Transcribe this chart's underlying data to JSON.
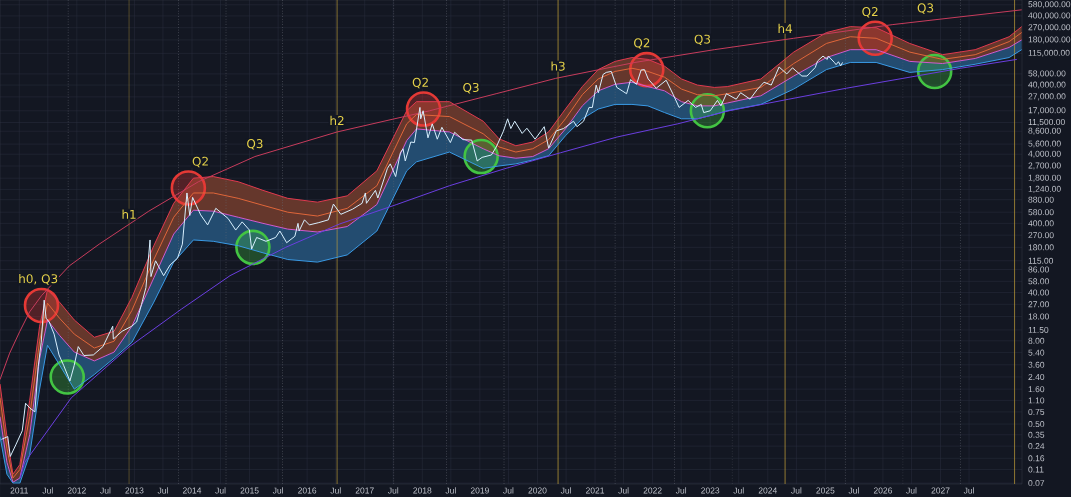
{
  "chart_data": {
    "type": "line",
    "xlim": [
      "2010-09",
      "2028-06"
    ],
    "ylim": [
      0.068,
      680000
    ],
    "log": "y",
    "grid": true,
    "xticks": [
      {
        "value": "2011",
        "label": "2011"
      },
      {
        "value": "2011-07",
        "label": "Jul"
      },
      {
        "value": "2012",
        "label": "2012"
      },
      {
        "value": "2012-07",
        "label": "Jul"
      },
      {
        "value": "2013",
        "label": "2013"
      },
      {
        "value": "2013-07",
        "label": "Jul"
      },
      {
        "value": "2014",
        "label": "2014"
      },
      {
        "value": "2014-07",
        "label": "Jul"
      },
      {
        "value": "2015",
        "label": "2015"
      },
      {
        "value": "2015-07",
        "label": "Jul"
      },
      {
        "value": "2016",
        "label": "2016"
      },
      {
        "value": "2016-07",
        "label": "Jul"
      },
      {
        "value": "2017",
        "label": "2017"
      },
      {
        "value": "2017-07",
        "label": "Jul"
      },
      {
        "value": "2018",
        "label": "2018"
      },
      {
        "value": "2018-07",
        "label": "Jul"
      },
      {
        "value": "2019",
        "label": "2019"
      },
      {
        "value": "2019-07",
        "label": "Jul"
      },
      {
        "value": "2020",
        "label": "2020"
      },
      {
        "value": "2020-07",
        "label": "Jul"
      },
      {
        "value": "2021",
        "label": "2021"
      },
      {
        "value": "2021-07",
        "label": "Jul"
      },
      {
        "value": "2022",
        "label": "2022"
      },
      {
        "value": "2022-07",
        "label": "Jul"
      },
      {
        "value": "2023",
        "label": "2023"
      },
      {
        "value": "2023-07",
        "label": "Jul"
      },
      {
        "value": "2024",
        "label": "2024"
      },
      {
        "value": "2024-07",
        "label": "Jul"
      },
      {
        "value": "2025",
        "label": "2025"
      },
      {
        "value": "2025-07",
        "label": "Jul"
      },
      {
        "value": "2026",
        "label": "2026"
      },
      {
        "value": "2026-07",
        "label": "Jul"
      },
      {
        "value": "2027",
        "label": "2027"
      },
      {
        "value": "2027-07",
        "label": "Jul"
      }
    ],
    "yticks": [
      {
        "value": 0.07,
        "label": "0.07"
      },
      {
        "value": 0.11,
        "label": "0.11"
      },
      {
        "value": 0.16,
        "label": "0.16"
      },
      {
        "value": 0.24,
        "label": "0.24"
      },
      {
        "value": 0.35,
        "label": "0.35"
      },
      {
        "value": 0.5,
        "label": "0.50"
      },
      {
        "value": 0.75,
        "label": "0.75"
      },
      {
        "value": 1.1,
        "label": "1.10"
      },
      {
        "value": 1.6,
        "label": "1.60"
      },
      {
        "value": 2.4,
        "label": "2.40"
      },
      {
        "value": 3.6,
        "label": "3.60"
      },
      {
        "value": 5.4,
        "label": "5.40"
      },
      {
        "value": 8,
        "label": "8.00"
      },
      {
        "value": 11.5,
        "label": "11.50"
      },
      {
        "value": 18,
        "label": "18.00"
      },
      {
        "value": 27,
        "label": "27.00"
      },
      {
        "value": 40,
        "label": "40.00"
      },
      {
        "value": 58,
        "label": "58.00"
      },
      {
        "value": 86,
        "label": "86.00"
      },
      {
        "value": 115,
        "label": "115.00"
      },
      {
        "value": 180,
        "label": "180.00"
      },
      {
        "value": 270,
        "label": "270.00"
      },
      {
        "value": 400,
        "label": "400.00"
      },
      {
        "value": 580,
        "label": "580.00"
      },
      {
        "value": 880,
        "label": "880.00"
      },
      {
        "value": 1240,
        "label": "1,240.00"
      },
      {
        "value": 1800,
        "label": "1,800.00"
      },
      {
        "value": 2700,
        "label": "2,700.00"
      },
      {
        "value": 4000,
        "label": "4,000.00"
      },
      {
        "value": 5600,
        "label": "5,600.00"
      },
      {
        "value": 8600,
        "label": "8,600.00"
      },
      {
        "value": 11500,
        "label": "11,500.00"
      },
      {
        "value": 17000,
        "label": "17,000.00"
      },
      {
        "value": 27000,
        "label": "27,000.00"
      },
      {
        "value": 40000,
        "label": "40,000.00"
      },
      {
        "value": 58000,
        "label": "58,000.00"
      },
      {
        "value": 115000,
        "label": "115,000.00"
      },
      {
        "value": 180000,
        "label": "180,000.00"
      },
      {
        "value": 270000,
        "label": "270,000.00"
      },
      {
        "value": 400000,
        "label": "400,000.00"
      },
      {
        "value": 580000,
        "label": "580,000.00"
      }
    ],
    "x": [
      "2010-09-01",
      "2010-10-15",
      "2010-11-22",
      "2011-01-05",
      "2011-03-08",
      "2011-05-10",
      "2011-06-29",
      "2011-09-13",
      "2011-12-16",
      "2012-04-21",
      "2012-08-25",
      "2012-12-16",
      "2013-05-04",
      "2013-09-07",
      "2014-01-10",
      "2014-05-16",
      "2014-10-21",
      "2015-03-27",
      "2015-08-31",
      "2016-03-07",
      "2016-09-12",
      "2017-03-19",
      "2017-09-24",
      "2017-11-25",
      "2018-06-22",
      "2019-01-22",
      "2019-05-02",
      "2019-08-17",
      "2019-12-02",
      "2020-03-12",
      "2020-06-27",
      "2020-10-12",
      "2021-01-21",
      "2021-05-08",
      "2021-08-23",
      "2021-12-02",
      "2022-03-18",
      "2022-07-03",
      "2022-10-12",
      "2023-01-27",
      "2023-04-19",
      "2023-11-18",
      "2024-06-14",
      "2025-01-08",
      "2025-06-08",
      "2025-11-19",
      "2026-06-20",
      "2027-01-14",
      "2027-08-09",
      "2028-03-11",
      "2028-05-30"
    ],
    "series": [
      {
        "color": "#e03a4f",
        "values": [
          1.9,
          0.33,
          0.094,
          0.13,
          1.1,
          13,
          44,
          29,
          16,
          9.0,
          11,
          34,
          190,
          780,
          1800,
          1900,
          1600,
          1200,
          920,
          810,
          1000,
          2300,
          17000,
          23000,
          23000,
          12000,
          6700,
          5300,
          6000,
          8400,
          18000,
          38000,
          67000,
          88000,
          100000,
          94000,
          75000,
          49000,
          40000,
          37000,
          38000,
          49000,
          120000,
          230000,
          280000,
          270000,
          160000,
          110000,
          130000,
          200000,
          280000
        ]
      },
      {
        "color": "#e0663a",
        "values": [
          1.2,
          0.22,
          0.083,
          0.11,
          0.64,
          7.9,
          28,
          17,
          10,
          6.3,
          7.9,
          22,
          120,
          490,
          1100,
          1100,
          920,
          730,
          580,
          510,
          660,
          1400,
          11000,
          15000,
          14000,
          7900,
          5100,
          4300,
          4800,
          6500,
          13000,
          29000,
          49000,
          63000,
          70000,
          63000,
          52000,
          35000,
          29000,
          28000,
          30000,
          37000,
          82000,
          160000,
          200000,
          190000,
          120000,
          94000,
          110000,
          170000,
          230000
        ],
        "lower": [
          0.64,
          0.14,
          0.072,
          0.083,
          0.35,
          4.4,
          16,
          9.6,
          5.5,
          4.1,
          5.5,
          13,
          65,
          280,
          620,
          600,
          490,
          400,
          330,
          300,
          360,
          750,
          6300,
          9300,
          8400,
          4800,
          3800,
          3500,
          3700,
          4800,
          9300,
          20000,
          33000,
          41000,
          44000,
          38000,
          33000,
          23000,
          20000,
          20000,
          22000,
          28000,
          54000,
          100000,
          130000,
          130000,
          88000,
          82000,
          97000,
          140000,
          180000
        ],
        "upper": [
          1.9,
          0.33,
          0.094,
          0.13,
          1.1,
          13,
          44,
          29,
          16,
          9.0,
          11,
          34,
          190,
          780,
          1800,
          1900,
          1600,
          1200,
          920,
          810,
          1000,
          2300,
          17000,
          23000,
          23000,
          12000,
          6700,
          5300,
          6000,
          8400,
          18000,
          38000,
          67000,
          88000,
          100000,
          94000,
          75000,
          49000,
          40000,
          37000,
          38000,
          49000,
          120000,
          230000,
          280000,
          270000,
          160000,
          110000,
          130000,
          200000,
          280000
        ]
      },
      {
        "color": "#d45bd0",
        "values": [
          0.64,
          0.14,
          0.072,
          0.083,
          0.35,
          4.4,
          16,
          9.6,
          5.5,
          4.1,
          5.5,
          13,
          65,
          280,
          620,
          600,
          490,
          400,
          330,
          300,
          360,
          750,
          6300,
          9300,
          8400,
          4800,
          3800,
          3500,
          3700,
          4800,
          9300,
          20000,
          33000,
          41000,
          44000,
          38000,
          33000,
          23000,
          20000,
          20000,
          22000,
          28000,
          54000,
          100000,
          130000,
          130000,
          88000,
          82000,
          97000,
          140000,
          180000
        ]
      },
      {
        "color": "#3a9be6",
        "values": [
          0.33,
          0.094,
          0.07,
          0.07,
          0.18,
          1.6,
          6.9,
          3.6,
          1.6,
          2.6,
          4.5,
          7.6,
          29,
          110,
          230,
          220,
          190,
          150,
          120,
          110,
          140,
          310,
          2300,
          3100,
          4300,
          2500,
          2700,
          2900,
          3300,
          3800,
          7400,
          13000,
          18000,
          21000,
          21000,
          20000,
          16000,
          13000,
          13000,
          15000,
          17000,
          21000,
          35000,
          67000,
          85000,
          85000,
          61000,
          67000,
          80000,
          100000,
          130000
        ],
        "lower": [
          0.33,
          0.094,
          0.07,
          0.07,
          0.18,
          1.6,
          6.9,
          3.6,
          1.6,
          2.6,
          4.5,
          7.6,
          29,
          110,
          230,
          220,
          190,
          150,
          120,
          110,
          140,
          310,
          2300,
          3100,
          4300,
          2500,
          2700,
          2900,
          3300,
          3800,
          7400,
          13000,
          18000,
          21000,
          21000,
          20000,
          16000,
          13000,
          13000,
          15000,
          17000,
          21000,
          35000,
          67000,
          85000,
          85000,
          61000,
          67000,
          80000,
          100000,
          130000
        ],
        "upper": [
          0.64,
          0.14,
          0.072,
          0.083,
          0.35,
          4.4,
          16,
          9.6,
          5.5,
          4.1,
          5.5,
          13,
          65,
          280,
          620,
          600,
          490,
          400,
          330,
          300,
          360,
          750,
          6300,
          9300,
          8400,
          4800,
          3800,
          3500,
          3700,
          4800,
          9300,
          20000,
          33000,
          41000,
          44000,
          38000,
          33000,
          23000,
          20000,
          20000,
          22000,
          28000,
          54000,
          100000,
          130000,
          130000,
          88000,
          82000,
          97000,
          140000,
          180000
        ]
      },
      {
        "color": "#c83c5c",
        "x": [
          "2010-09-01",
          "2010-11-01",
          "2011-01-05",
          "2011-03-08",
          "2011-05-22",
          "2011-11-14",
          "2012-05-22",
          "2013-04-02",
          "2014-02-11",
          "2015-02-04",
          "2016-07-10",
          "2018-02-16",
          "2019-04-14",
          "2020-04-26",
          "2021-09-11",
          "2023-01-27",
          "2024-06-14",
          "2026-03-05",
          "2028-05-30"
        ],
        "values": [
          2.2,
          5.3,
          11,
          21,
          36,
          97,
          200,
          600,
          1600,
          3700,
          8400,
          17000,
          30000,
          50000,
          85000,
          130000,
          190000,
          300000,
          490000
        ]
      },
      {
        "color": "#6a3ee0",
        "x": [
          "2011-01-05",
          "2011-02-05",
          "2011-11-27",
          "2012-11-27",
          "2013-10-26",
          "2014-08-30",
          "2015-08-18",
          "2016-07-23",
          "2017-07-23",
          "2018-06-22",
          "2019-06-16",
          "2020-05-27",
          "2021-05-21",
          "2022-06-09",
          "2023-05-01",
          "2024-05-14",
          "2025-05-14",
          "2026-05-08",
          "2027-05-07",
          "2028-04-29"
        ],
        "values": [
          0.082,
          0.14,
          1.2,
          6.5,
          23,
          70,
          180,
          390,
          750,
          1400,
          2500,
          4200,
          7100,
          11000,
          17000,
          25000,
          36000,
          50000,
          70000,
          94000
        ]
      },
      {
        "color": "#d8f0ff",
        "x": [
          "2010-09-10",
          "2010-10-20",
          "2010-11-05",
          "2010-12-10",
          "2011-01-20",
          "2011-02-10",
          "2011-03-10",
          "2011-04-10",
          "2011-05-01",
          "2011-05-20",
          "2011-06-08",
          "2011-06-20",
          "2011-07-10",
          "2011-08-10",
          "2011-09-10",
          "2011-10-10",
          "2011-11-18",
          "2011-12-15",
          "2012-01-10",
          "2012-02-15",
          "2012-04-15",
          "2012-06-15",
          "2012-08-16",
          "2012-08-20",
          "2012-10-15",
          "2012-12-15",
          "2013-01-15",
          "2013-02-15",
          "2013-03-15",
          "2013-04-10",
          "2013-04-16",
          "2013-05-15",
          "2013-07-05",
          "2013-08-15",
          "2013-10-01",
          "2013-11-01",
          "2013-11-30",
          "2013-12-18",
          "2014-01-05",
          "2014-02-25",
          "2014-04-10",
          "2014-06-01",
          "2014-08-18",
          "2014-10-05",
          "2014-11-15",
          "2014-12-31",
          "2015-01-14",
          "2015-02-15",
          "2015-04-15",
          "2015-06-15",
          "2015-07-12",
          "2015-08-24",
          "2015-10-15",
          "2015-11-04",
          "2015-11-11",
          "2015-12-15",
          "2016-01-15",
          "2016-03-15",
          "2016-05-15",
          "2016-06-16",
          "2016-08-02",
          "2016-10-15",
          "2016-12-15",
          "2017-01-05",
          "2017-01-12",
          "2017-03-10",
          "2017-03-25",
          "2017-05-25",
          "2017-06-12",
          "2017-07-16",
          "2017-08-15",
          "2017-09-01",
          "2017-09-15",
          "2017-10-20",
          "2017-11-12",
          "2017-12-17",
          "2017-12-22",
          "2018-01-06",
          "2018-02-06",
          "2018-03-05",
          "2018-04-06",
          "2018-05-05",
          "2018-06-28",
          "2018-07-25",
          "2018-09-15",
          "2018-11-10",
          "2018-12-15",
          "2019-01-15",
          "2019-03-15",
          "2019-04-15",
          "2019-05-30",
          "2019-06-26",
          "2019-07-16",
          "2019-08-10",
          "2019-09-26",
          "2019-10-26",
          "2019-12-17",
          "2020-02-13",
          "2020-03-12",
          "2020-04-30",
          "2020-06-15",
          "2020-08-17",
          "2020-09-08",
          "2020-10-20",
          "2020-11-24",
          "2020-12-15",
          "2021-01-08",
          "2021-01-22",
          "2021-02-21",
          "2021-03-13",
          "2021-04-14",
          "2021-05-19",
          "2021-06-22",
          "2021-07-20",
          "2021-08-14",
          "2021-09-21",
          "2021-10-20",
          "2021-11-10",
          "2021-12-04",
          "2022-01-24",
          "2022-03-28",
          "2022-05-12",
          "2022-06-18",
          "2022-08-14",
          "2022-09-30",
          "2022-11-05",
          "2022-11-21",
          "2023-01-01",
          "2023-02-16",
          "2023-03-10",
          "2023-04-14",
          "2023-06-15",
          "2023-07-13",
          "2023-09-11",
          "2023-10-24",
          "2023-12-08",
          "2024-01-23",
          "2024-03-13",
          "2024-05-01",
          "2024-06-06",
          "2024-08-05",
          "2024-09-06",
          "2024-10-29",
          "2024-11-12",
          "2024-12-17",
          "2025-01-13",
          "2025-01-20",
          "2025-02-27",
          "2025-03-10",
          "2025-03-25",
          "2025-04-08",
          "2025-04-20"
        ],
        "values": [
          0.3,
          0.33,
          0.17,
          0.25,
          0.4,
          1.0,
          0.85,
          0.75,
          3.4,
          7.5,
          31,
          17,
          15,
          10,
          5.0,
          3.5,
          2.1,
          3.5,
          6.6,
          4.9,
          5.0,
          6.6,
          13,
          8.5,
          11,
          13,
          15,
          27,
          47,
          230,
          68,
          115,
          70,
          100,
          125,
          200,
          1100,
          520,
          950,
          530,
          380,
          660,
          470,
          320,
          420,
          320,
          170,
          250,
          220,
          250,
          310,
          210,
          260,
          400,
          310,
          450,
          380,
          410,
          450,
          760,
          540,
          640,
          780,
          1100,
          780,
          1200,
          930,
          2500,
          2900,
          1900,
          4200,
          4800,
          3200,
          6000,
          5900,
          19000,
          13000,
          17000,
          6900,
          11000,
          6600,
          9800,
          5900,
          8300,
          6500,
          6400,
          3200,
          3600,
          3900,
          5100,
          8600,
          13000,
          9400,
          12000,
          8000,
          9500,
          6600,
          10000,
          4900,
          8700,
          9400,
          12000,
          10000,
          12000,
          19000,
          19000,
          40000,
          31000,
          57000,
          61000,
          63000,
          37000,
          33000,
          30000,
          48000,
          41000,
          66000,
          67000,
          49000,
          36000,
          47000,
          29000,
          19000,
          24000,
          19000,
          21000,
          16000,
          17000,
          24000,
          20000,
          30000,
          25000,
          31000,
          25000,
          34000,
          44000,
          40000,
          73000,
          58000,
          71000,
          54000,
          54000,
          72000,
          89000,
          105000,
          94000,
          105000,
          85000,
          79000,
          87000,
          76000,
          85000
        ]
      },
      {
        "type": "scatter",
        "marker": "circle",
        "color": "#e53935",
        "x": [
          "2011-05-22",
          "2013-12-09",
          "2018-01-09",
          "2021-11-25",
          "2025-11-13"
        ],
        "values": [
          26,
          1300,
          18000,
          67000,
          190000
        ]
      },
      {
        "type": "scatter",
        "marker": "circle",
        "color": "#43c443",
        "x": [
          "2011-11-01",
          "2015-01-22",
          "2019-01-09",
          "2022-12-14",
          "2026-11-25"
        ],
        "values": [
          2.4,
          180,
          3700,
          17000,
          63000
        ]
      }
    ],
    "ref_lines": [
      {
        "axis": "x",
        "value": "2012-11-28",
        "color": "#c8a53a",
        "line_style": "solid"
      },
      {
        "axis": "x",
        "value": "2016-07-09",
        "color": "#c8a53a",
        "line_style": "solid"
      },
      {
        "axis": "x",
        "value": "2020-05-11",
        "color": "#c8a53a",
        "line_style": "solid"
      },
      {
        "axis": "x",
        "value": "2024-04-20",
        "color": "#c8a53a",
        "line_style": "solid"
      },
      {
        "axis": "x",
        "value": "2028-04-15",
        "color": "#c8a53a",
        "line_style": "solid"
      },
      {
        "axis": "x",
        "value": "2011-11-07",
        "color": "#6b6f7a",
        "line_style": "dotted"
      },
      {
        "axis": "x",
        "value": "2013-10-07",
        "color": "#6b6f7a",
        "line_style": "dotted"
      },
      {
        "axis": "x",
        "value": "2014-08-05",
        "color": "#6b6f7a",
        "line_style": "dotted"
      },
      {
        "axis": "x",
        "value": "2015-07-29",
        "color": "#6b6f7a",
        "line_style": "dotted"
      },
      {
        "axis": "x",
        "value": "2017-07-04",
        "color": "#6b6f7a",
        "line_style": "dotted"
      },
      {
        "axis": "x",
        "value": "2018-06-03",
        "color": "#6b6f7a",
        "line_style": "dotted"
      },
      {
        "axis": "x",
        "value": "2019-06-03",
        "color": "#6b6f7a",
        "line_style": "dotted"
      },
      {
        "axis": "x",
        "value": "2021-05-08",
        "color": "#6b6f7a",
        "line_style": "dotted"
      },
      {
        "axis": "x",
        "value": "2022-05-20",
        "color": "#6b6f7a",
        "line_style": "dotted"
      },
      {
        "axis": "x",
        "value": "2023-05-20",
        "color": "#6b6f7a",
        "line_style": "dotted"
      },
      {
        "axis": "x",
        "value": "2025-05-08",
        "color": "#6b6f7a",
        "line_style": "dotted"
      },
      {
        "axis": "x",
        "value": "2026-05-08",
        "color": "#6b6f7a",
        "line_style": "dotted"
      },
      {
        "axis": "x",
        "value": "2027-05-07",
        "color": "#6b6f7a",
        "line_style": "dotted"
      }
    ],
    "annotations": [
      {
        "text": "h0, Q3",
        "x": "2011-05-01",
        "y": 33
      },
      {
        "text": "h1",
        "x": "2012-11-28",
        "y": 370
      },
      {
        "text": "Q2",
        "x": "2014-02-24",
        "y": 1700
      },
      {
        "text": "Q3",
        "x": "2015-02-04",
        "y": 3700
      },
      {
        "text": "h2",
        "x": "2016-07-09",
        "y": 8400
      },
      {
        "text": "Q2",
        "x": "2017-12-21",
        "y": 16000
      },
      {
        "text": "Q3",
        "x": "2018-11-06",
        "y": 24000
      },
      {
        "text": "h3",
        "x": "2020-05-11",
        "y": 51000
      },
      {
        "text": "Q2",
        "x": "2021-10-25",
        "y": 88000
      },
      {
        "text": "Q3",
        "x": "2022-11-13",
        "y": 120000
      },
      {
        "text": "h4",
        "x": "2024-04-20",
        "y": 180000
      },
      {
        "text": "Q2",
        "x": "2025-10-12",
        "y": 270000
      },
      {
        "text": "Q3",
        "x": "2026-09-28",
        "y": 340000
      }
    ]
  }
}
